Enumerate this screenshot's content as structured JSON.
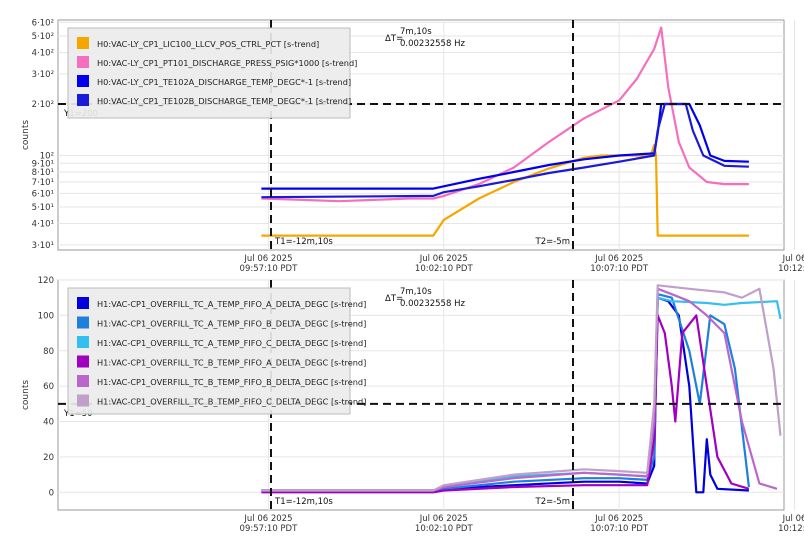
{
  "chart_data": [
    {
      "type": "line",
      "ylabel": "counts",
      "yscale": "log",
      "ylim": [
        28,
        620
      ],
      "yticks": [
        {
          "v": 30,
          "label": "3·10¹"
        },
        {
          "v": 40,
          "label": "4·10¹"
        },
        {
          "v": 50,
          "label": "5·10¹"
        },
        {
          "v": 60,
          "label": "6·10¹"
        },
        {
          "v": 70,
          "label": "7·10¹"
        },
        {
          "v": 80,
          "label": "8·10¹"
        },
        {
          "v": 90,
          "label": "9·10¹"
        },
        {
          "v": 100,
          "label": "10²"
        },
        {
          "v": 200,
          "label": "2·10²"
        },
        {
          "v": 300,
          "label": "3·10²"
        },
        {
          "v": 400,
          "label": "4·10²"
        },
        {
          "v": 500,
          "label": "5·10²"
        },
        {
          "v": 600,
          "label": "6·10²"
        }
      ],
      "xlim": [
        -16,
        4.7
      ],
      "xticks": [
        {
          "v": -10,
          "line1": "Jul 06 2025",
          "line2": "09:57:10 PDT"
        },
        {
          "v": -5,
          "line1": "Jul 06 2025",
          "line2": "10:02:10 PDT"
        },
        {
          "v": 0,
          "line1": "Jul 06 2025",
          "line2": "10:07:10 PDT"
        },
        {
          "v": 5,
          "line1": "Jul 06",
          "line2": "10:12:1"
        }
      ],
      "cursor_y": {
        "value": 200,
        "label": "Y1=200"
      },
      "cursor_t1": {
        "value": -12.17,
        "label": "T1=-12m,10s"
      },
      "cursor_t2": {
        "value": -5,
        "label": "T2=-5m"
      },
      "delta": {
        "label": "ΔT=",
        "line1": "7m,10s",
        "line2": "0.00232558 Hz"
      },
      "legend_location": "top-left",
      "series": [
        {
          "name": "H0:VAC-LY_CP1_LIC100_LLCV_POS_CTRL_PCT [s-trend]",
          "color": "#f5a700",
          "points": [
            [
              -10.2,
              34
            ],
            [
              -5.3,
              34
            ],
            [
              -5,
              42
            ],
            [
              -4,
              56
            ],
            [
              -3,
              70
            ],
            [
              -2,
              84
            ],
            [
              -1,
              97
            ],
            [
              -0.5,
              100
            ],
            [
              0.9,
              100
            ],
            [
              1,
              115
            ],
            [
              1.05,
              100
            ],
            [
              1.1,
              34
            ],
            [
              3.7,
              34
            ]
          ]
        },
        {
          "name": "H0:VAC-LY_CP1_PT101_DISCHARGE_PRESS_PSIG*1000 [s-trend]",
          "color": "#f56fbf",
          "points": [
            [
              -10.2,
              56
            ],
            [
              -9,
              55
            ],
            [
              -8,
              54
            ],
            [
              -7,
              55
            ],
            [
              -6,
              56
            ],
            [
              -5.3,
              56
            ],
            [
              -5,
              58
            ],
            [
              -4,
              68
            ],
            [
              -3,
              85
            ],
            [
              -2,
              120
            ],
            [
              -1,
              165
            ],
            [
              0,
              210
            ],
            [
              0.5,
              280
            ],
            [
              1,
              420
            ],
            [
              1.2,
              560
            ],
            [
              1.4,
              250
            ],
            [
              1.7,
              120
            ],
            [
              2,
              85
            ],
            [
              2.5,
              70
            ],
            [
              3,
              68
            ],
            [
              3.7,
              68
            ]
          ]
        },
        {
          "name": "H0:VAC-LY_CP1_TE102A_DISCHARGE_TEMP_DEGC*-1 [s-trend]",
          "color": "#0000ee",
          "points": [
            [
              -10.2,
              64
            ],
            [
              -5.3,
              64
            ],
            [
              -5,
              66
            ],
            [
              -4,
              73
            ],
            [
              -3,
              80
            ],
            [
              -2,
              88
            ],
            [
              -1,
              95
            ],
            [
              0,
              100
            ],
            [
              1,
              103
            ],
            [
              1.1,
              135
            ],
            [
              1.2,
              200
            ],
            [
              2,
              200
            ],
            [
              2.3,
              150
            ],
            [
              2.6,
              100
            ],
            [
              3,
              93
            ],
            [
              3.7,
              92
            ]
          ]
        },
        {
          "name": "H0:VAC-LY_CP1_TE102B_DISCHARGE_TEMP_DEGC*-1 [s-trend]",
          "color": "#1a1ad8",
          "points": [
            [
              -10.2,
              57
            ],
            [
              -5.3,
              58
            ],
            [
              -5,
              61
            ],
            [
              -4,
              66
            ],
            [
              -3,
              72
            ],
            [
              -2,
              79
            ],
            [
              -1,
              85
            ],
            [
              0,
              92
            ],
            [
              1,
              100
            ],
            [
              1.1,
              140
            ],
            [
              1.3,
              200
            ],
            [
              1.9,
              200
            ],
            [
              2.1,
              140
            ],
            [
              2.4,
              100
            ],
            [
              3,
              87
            ],
            [
              3.7,
              86
            ]
          ]
        }
      ]
    },
    {
      "type": "line",
      "ylabel": "counts",
      "ylim": [
        -10,
        120
      ],
      "yticks": [
        {
          "v": 0,
          "label": "0"
        },
        {
          "v": 20,
          "label": "20"
        },
        {
          "v": 40,
          "label": "40"
        },
        {
          "v": 60,
          "label": "60"
        },
        {
          "v": 80,
          "label": "80"
        },
        {
          "v": 100,
          "label": "100"
        },
        {
          "v": 120,
          "label": "120"
        }
      ],
      "xlim": [
        -16,
        4.7
      ],
      "xticks": [
        {
          "v": -10,
          "line1": "Jul 06 2025",
          "line2": "09:57:10 PDT"
        },
        {
          "v": -5,
          "line1": "Jul 06 2025",
          "line2": "10:02:10 PDT"
        },
        {
          "v": 0,
          "line1": "Jul 06 2025",
          "line2": "10:07:10 PDT"
        },
        {
          "v": 5,
          "line1": "Jul 06",
          "line2": "10:12:1"
        }
      ],
      "cursor_y": {
        "value": 50,
        "label": "Y1=50"
      },
      "cursor_t1": {
        "value": -12.17,
        "label": "T1=-12m,10s"
      },
      "cursor_t2": {
        "value": -5,
        "label": "T2=-5m"
      },
      "delta": {
        "label": "ΔT=",
        "line1": "7m,10s",
        "line2": "0.00232558 Hz"
      },
      "legend_location": "top-left",
      "series": [
        {
          "name": "H1:VAC-CP1_OVERFILL_TC_A_TEMP_FIFO_A_DELTA_DEGC [s-trend]",
          "color": "#0000dd",
          "points": [
            [
              -10.2,
              1
            ],
            [
              -5.3,
              1
            ],
            [
              -5,
              2
            ],
            [
              -3,
              4
            ],
            [
              -1,
              6
            ],
            [
              0,
              6
            ],
            [
              0.8,
              5
            ],
            [
              1,
              15
            ],
            [
              1.1,
              110
            ],
            [
              1.4,
              108
            ],
            [
              1.7,
              100
            ],
            [
              2,
              60
            ],
            [
              2.1,
              30
            ],
            [
              2.2,
              0
            ],
            [
              2.4,
              0
            ],
            [
              2.5,
              30
            ],
            [
              2.6,
              10
            ],
            [
              2.8,
              2
            ],
            [
              3.7,
              1
            ]
          ]
        },
        {
          "name": "H1:VAC-CP1_OVERFILL_TC_A_TEMP_FIFO_B_DELTA_DEGC [s-trend]",
          "color": "#1e7fdd",
          "points": [
            [
              -10.2,
              1
            ],
            [
              -5.3,
              1
            ],
            [
              -5,
              2
            ],
            [
              -3,
              6
            ],
            [
              -1,
              8
            ],
            [
              0,
              8
            ],
            [
              0.8,
              7
            ],
            [
              1,
              20
            ],
            [
              1.1,
              112
            ],
            [
              1.5,
              110
            ],
            [
              2,
              80
            ],
            [
              2.3,
              50
            ],
            [
              2.6,
              100
            ],
            [
              3,
              95
            ],
            [
              3.3,
              70
            ],
            [
              3.6,
              20
            ],
            [
              3.7,
              3
            ]
          ]
        },
        {
          "name": "H1:VAC-CP1_OVERFILL_TC_A_TEMP_FIFO_C_DELTA_DEGC [s-trend]",
          "color": "#33bff0",
          "points": [
            [
              -10.2,
              1
            ],
            [
              -5.3,
              1
            ],
            [
              -5,
              3
            ],
            [
              -3,
              9
            ],
            [
              -1,
              11
            ],
            [
              0,
              10
            ],
            [
              0.8,
              9
            ],
            [
              1,
              30
            ],
            [
              1.1,
              110
            ],
            [
              1.5,
              108
            ],
            [
              2.5,
              107
            ],
            [
              3,
              106
            ],
            [
              3.5,
              107
            ],
            [
              4.5,
              108
            ],
            [
              4.6,
              98
            ]
          ]
        },
        {
          "name": "H1:VAC-CP1_OVERFILL_TC_B_TEMP_FIFO_A_DELTA_DEGC [s-trend]",
          "color": "#a000c0",
          "points": [
            [
              -10.2,
              0
            ],
            [
              -5.3,
              0
            ],
            [
              -5,
              1
            ],
            [
              -3,
              3
            ],
            [
              -1,
              4
            ],
            [
              0,
              4
            ],
            [
              0.8,
              4
            ],
            [
              1,
              30
            ],
            [
              1.1,
              100
            ],
            [
              1.3,
              90
            ],
            [
              1.5,
              60
            ],
            [
              1.6,
              40
            ],
            [
              1.8,
              90
            ],
            [
              2.2,
              100
            ],
            [
              2.5,
              60
            ],
            [
              2.8,
              20
            ],
            [
              3.2,
              5
            ],
            [
              3.7,
              2
            ]
          ]
        },
        {
          "name": "H1:VAC-CP1_OVERFILL_TC_B_TEMP_FIFO_B_DELTA_DEGC [s-trend]",
          "color": "#bb66cc",
          "points": [
            [
              -10.2,
              1
            ],
            [
              -5.3,
              1
            ],
            [
              -5,
              3
            ],
            [
              -3,
              8
            ],
            [
              -1,
              11
            ],
            [
              0,
              10
            ],
            [
              0.8,
              9
            ],
            [
              1,
              40
            ],
            [
              1.1,
              115
            ],
            [
              1.5,
              112
            ],
            [
              2,
              108
            ],
            [
              2.5,
              100
            ],
            [
              3,
              90
            ],
            [
              3.5,
              40
            ],
            [
              4,
              5
            ],
            [
              4.5,
              2
            ]
          ]
        },
        {
          "name": "H1:VAC-CP1_OVERFILL_TC_B_TEMP_FIFO_C_DELTA_DEGC [s-trend]",
          "color": "#c0a0c8",
          "points": [
            [
              -10.2,
              1
            ],
            [
              -5.3,
              1
            ],
            [
              -5,
              4
            ],
            [
              -3,
              10
            ],
            [
              -1,
              13
            ],
            [
              0,
              12
            ],
            [
              0.8,
              11
            ],
            [
              1,
              50
            ],
            [
              1.1,
              117
            ],
            [
              2,
              115
            ],
            [
              3,
              113
            ],
            [
              3.5,
              110
            ],
            [
              4,
              115
            ],
            [
              4.4,
              70
            ],
            [
              4.6,
              32
            ]
          ]
        }
      ]
    }
  ]
}
